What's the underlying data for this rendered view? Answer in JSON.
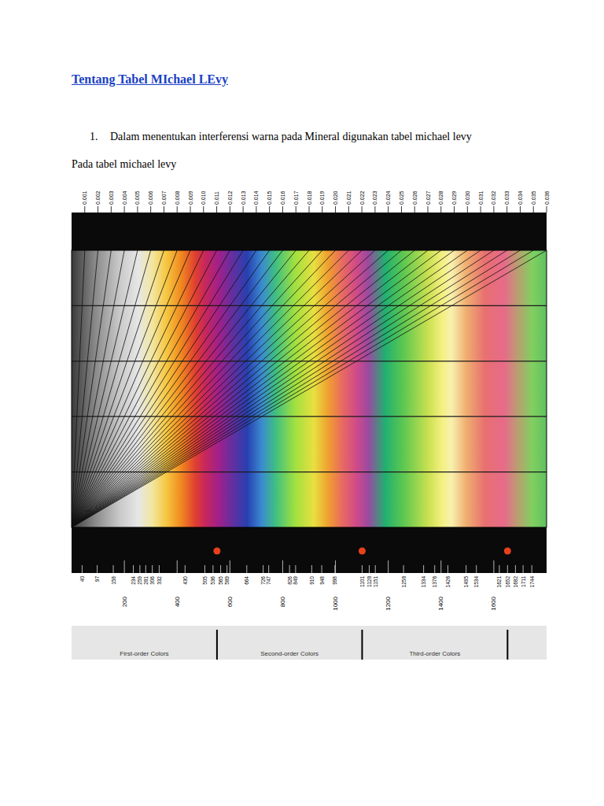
{
  "header": {
    "title": "Tentang Tabel MIchael LEvy"
  },
  "list": [
    {
      "number": "1.",
      "text": "Dalam menentukan interferensi warna pada Mineral digunakan tabel michael levy"
    }
  ],
  "paragraph": "Pada tabel michael levy",
  "chart_data": {
    "type": "michel-levy",
    "xlim": [
      0,
      1800
    ],
    "ylim": [
      0,
      50
    ],
    "xticks": [
      40,
      97,
      158,
      200,
      234,
      259,
      281,
      306,
      332,
      400,
      430,
      505,
      536,
      565,
      589,
      600,
      664,
      726,
      747,
      800,
      826,
      849,
      910,
      948,
      998,
      1000,
      1101,
      1128,
      1151,
      1200,
      1258,
      1334,
      1376,
      1400,
      1426,
      1495,
      1534,
      1600,
      1621,
      1652,
      1682,
      1711,
      1744
    ],
    "yticks": [
      10,
      20,
      30,
      40
    ],
    "grid": true,
    "tick_labels": "x",
    "birefringence": [
      0.001,
      0.002,
      0.003,
      0.004,
      0.005,
      0.006,
      0.007,
      0.008,
      0.009,
      {
        "value": 0.01,
        "label": "0.010"
      },
      0.011,
      0.012,
      0.013,
      0.014,
      0.015,
      0.016,
      0.017,
      0.018,
      0.019,
      {
        "value": 0.02,
        "label": "0.020"
      },
      0.021,
      0.022,
      0.023,
      0.024,
      0.025,
      0.026,
      0.027,
      0.028,
      0.029,
      {
        "value": 0.03,
        "label": "0.030"
      },
      0.031,
      0.032,
      0.033,
      0.034,
      0.035,
      0.036
    ],
    "order_marks": [
      551,
      1101,
      1652
    ],
    "orders": [
      "First-order Colors",
      "Second-order Colors",
      "Third-order Colors"
    ]
  }
}
